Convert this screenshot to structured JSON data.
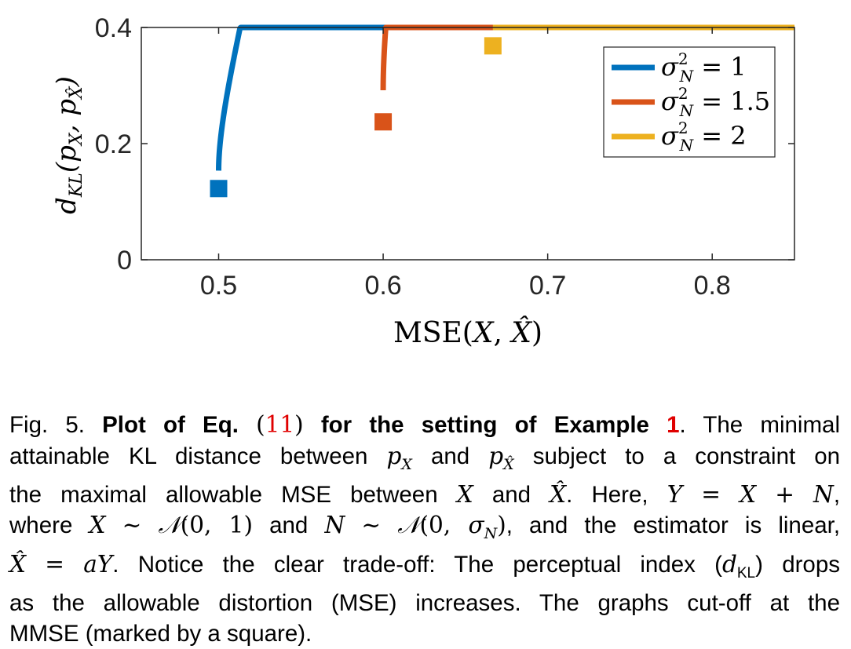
{
  "chart_data": {
    "type": "line",
    "xlabel": "MSE(X, X̂)",
    "ylabel": "d_KL(p_X, p_X̂)",
    "xlim": [
      0.453,
      0.85
    ],
    "ylim": [
      0,
      0.4
    ],
    "x_ticks": [
      "0.5",
      "0.6",
      "0.7",
      "0.8"
    ],
    "y_ticks": [
      "0",
      "0.2",
      "0.4"
    ],
    "legend_position": "top-right",
    "grid": false,
    "series": [
      {
        "name": "σ_N^2 = 1",
        "legend_value": "1",
        "color": "#0072BD",
        "mmse": 0.5,
        "dkl_at_mmse": 0.1226,
        "marker": "square"
      },
      {
        "name": "σ_N^2 = 1.5",
        "legend_value": "1.5",
        "color": "#D95319",
        "mmse": 0.6,
        "dkl_at_mmse": 0.2375,
        "marker": "square"
      },
      {
        "name": "σ_N^2 = 2",
        "legend_value": "2",
        "color": "#EDB120",
        "mmse": 0.6667,
        "dkl_at_mmse": 0.3684,
        "marker": "square"
      }
    ]
  },
  "caption": {
    "fig_label": "Fig. 5.",
    "bold_part1": "Plot of Eq.",
    "eq_ref": "11",
    "bold_part2": "for the setting of Example",
    "example_ref": "1",
    "text_1": ". The minimal",
    "text_2": "attainable KL distance between",
    "text_3": "and",
    "text_4": "subject to a constraint on",
    "text_5": "the maximal allowable MSE between",
    "text_6": "and",
    "text_7": ". Here,",
    "text_8": "where",
    "text_9": "and",
    "text_10": ", and the estimator is linear,",
    "text_11": ". Notice the clear trade-off: The perceptual index (",
    "text_12": ") drops",
    "text_13": "as the allowable distortion (MSE) increases. The graphs cut-off at the",
    "text_14": "MMSE (marked by a square)."
  }
}
